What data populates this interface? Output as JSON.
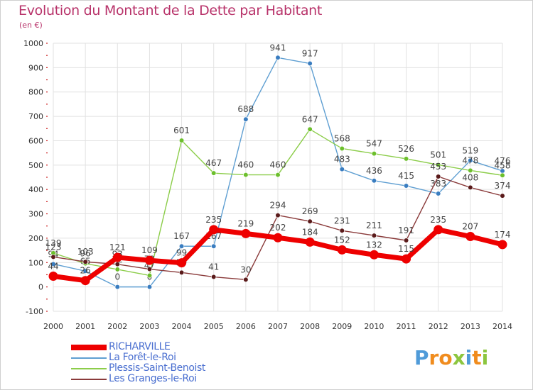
{
  "title": "Evolution du Montant de la Dette par Habitant",
  "unit": "(en €)",
  "logo": {
    "text": "Proxiti",
    "letters": [
      "P",
      "r",
      "o",
      "x",
      "i",
      "t",
      "i"
    ],
    "colors": [
      "#4f9bd9",
      "#f08c1e",
      "#f08c1e",
      "#8cc63f",
      "#4f9bd9",
      "#f08c1e",
      "#8cc63f"
    ]
  },
  "chart_data": {
    "type": "line",
    "x": [
      "2000",
      "2001",
      "2002",
      "2003",
      "2004",
      "2005",
      "2006",
      "2007",
      "2008",
      "2009",
      "2010",
      "2011",
      "2012",
      "2013",
      "2014"
    ],
    "ylim": [
      -100,
      1000
    ],
    "yticks": [
      "-100",
      "0",
      "100",
      "200",
      "300",
      "400",
      "500",
      "600",
      "700",
      "800",
      "900",
      "1000"
    ],
    "grid": true,
    "legend_position": "bottom-left",
    "series": [
      {
        "name": "La Forêt-le-Roi",
        "color": "#5f9fd2",
        "point_color": "#3a7dc0",
        "values": [
          94,
          65,
          0,
          0,
          167,
          167,
          688,
          941,
          917,
          483,
          436,
          415,
          383,
          519,
          476
        ],
        "labels": [
          "94",
          "65",
          "0",
          "0",
          "167",
          "167",
          "688",
          "941",
          "917",
          "483",
          "436",
          "415",
          "383",
          "519",
          "476"
        ]
      },
      {
        "name": "Plessis-Saint-Benoist",
        "color": "#8ccd4a",
        "point_color": "#6cbf2c",
        "values": [
          139,
          96,
          72,
          47,
          601,
          467,
          460,
          460,
          647,
          568,
          547,
          526,
          501,
          478,
          458
        ],
        "labels": [
          "139",
          "96",
          "72",
          "47",
          "601",
          "467",
          "460",
          "460",
          "647",
          "568",
          "547",
          "526",
          "501",
          "478",
          "458"
        ]
      },
      {
        "name": "Les Granges-le-Roi",
        "color": "#8a3a3a",
        "point_color": "#5a1a1a",
        "values": [
          123,
          103,
          93,
          73,
          59,
          41,
          30,
          294,
          269,
          231,
          211,
          191,
          453,
          408,
          374
        ],
        "labels": [
          "123",
          "103",
          "93",
          "73",
          "59",
          "41",
          "30",
          "294",
          "269",
          "231",
          "211",
          "191",
          "453",
          "408",
          "374"
        ]
      },
      {
        "name": "RICHARVILLE",
        "color": "#ee0000",
        "point_color": "#ee0000",
        "values": [
          44,
          26,
          121,
          109,
          99,
          235,
          219,
          202,
          184,
          152,
          132,
          115,
          235,
          207,
          174
        ],
        "labels": [
          "44",
          "26",
          "121",
          "109",
          "99",
          "235",
          "219",
          "202",
          "184",
          "152",
          "132",
          "115",
          "235",
          "207",
          "174"
        ]
      }
    ]
  },
  "legend": [
    {
      "name": "RICHARVILLE",
      "color": "#ee0000",
      "text_color": "#4a6fd0"
    },
    {
      "name": "La Forêt-le-Roi",
      "color": "#5f9fd2",
      "text_color": "#4a6fd0"
    },
    {
      "name": "Plessis-Saint-Benoist",
      "color": "#8ccd4a",
      "text_color": "#4a6fd0"
    },
    {
      "name": "Les Granges-le-Roi",
      "color": "#8a3a3a",
      "text_color": "#4a6fd0"
    }
  ]
}
